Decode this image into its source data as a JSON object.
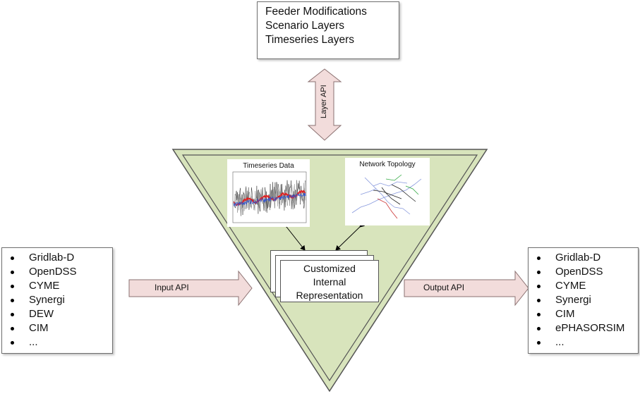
{
  "layers_box": {
    "lines": [
      "Feeder Modifications",
      "Scenario Layers",
      "Timeseries Layers"
    ]
  },
  "layer_api": {
    "label": "Layer API"
  },
  "input_api": {
    "label": "Input API"
  },
  "output_api": {
    "label": "Output API"
  },
  "timeseries_panel": {
    "title": "Timeseries Data"
  },
  "topology_panel": {
    "title": "Network Topology"
  },
  "internal_representation": {
    "lines": [
      "Customized",
      "Internal",
      "Representation"
    ]
  },
  "input_formats": [
    "Gridlab-D",
    "OpenDSS",
    "CYME",
    "Synergi",
    "DEW",
    "CIM",
    "..."
  ],
  "output_formats": [
    "Gridlab-D",
    "OpenDSS",
    "CYME",
    "Synergi",
    "CIM",
    "ePHASORSIM",
    "..."
  ],
  "colors": {
    "triangle_fill": "#d8e4bc",
    "triangle_stroke": "#555555",
    "arrow_fill": "#f2dcdb",
    "arrow_stroke": "#8a7070"
  }
}
